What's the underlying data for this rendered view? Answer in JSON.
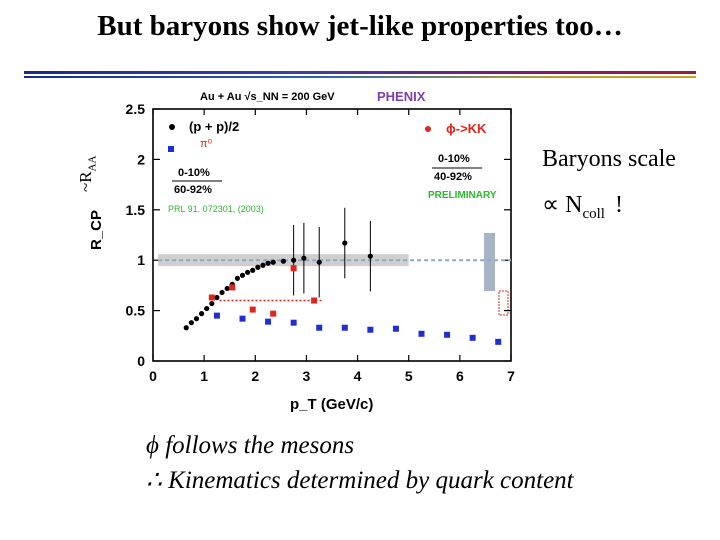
{
  "slide": {
    "title": "But baryons show jet-like properties too…",
    "side_label": "~R",
    "side_label_sub": "AA",
    "right_line1": "Baryons scale",
    "right_line2_prefix": "∝ N",
    "right_line2_sub": "coll",
    "right_line2_suffix": "!",
    "bottom_line1": "ϕ follows the mesons",
    "bottom_line2": "∴ Kinematics determined by quark content"
  },
  "chart_data": {
    "type": "scatter",
    "title": "Au + Au  √s_NN = 200 GeV",
    "experiment": "PHENIX",
    "xlabel": "p_T (GeV/c)",
    "ylabel": "R_CP",
    "xlim": [
      0,
      7
    ],
    "ylim": [
      0,
      2.5
    ],
    "x_ticks": [
      "0",
      "1",
      "2",
      "3",
      "4",
      "5",
      "6",
      "7"
    ],
    "y_ticks": [
      "0",
      "0.5",
      "1",
      "1.5",
      "2",
      "2.5"
    ],
    "legend_left": {
      "proton_label": "(p + p)/2",
      "pion_label": "π⁰",
      "central": "0-10%",
      "peripheral": "60-92%",
      "reference": "PRL 91. 072301, (2003)"
    },
    "legend_right": {
      "phi_label": "ϕ->KK",
      "central": "0-10%",
      "peripheral": "40-92%",
      "status": "PRELIMINARY"
    },
    "colors": {
      "proton": "#000000",
      "pion": "#1f2fcf",
      "phi": "#e0261c",
      "green_text": "#2fb52f",
      "phenix": "#7a3fb0",
      "band": "#cfcfcf",
      "dash": "#8fa6c8"
    },
    "series": [
      {
        "name": "(p + p)/2",
        "marker": "circle",
        "x": [
          0.65,
          0.75,
          0.85,
          0.95,
          1.05,
          1.15,
          1.25,
          1.35,
          1.45,
          1.55,
          1.65,
          1.75,
          1.85,
          1.95,
          2.05,
          2.15,
          2.25,
          2.35,
          2.55,
          2.75,
          2.95,
          3.25,
          3.75,
          4.25
        ],
        "y": [
          0.33,
          0.38,
          0.42,
          0.47,
          0.52,
          0.57,
          0.63,
          0.68,
          0.72,
          0.76,
          0.82,
          0.85,
          0.88,
          0.9,
          0.93,
          0.95,
          0.97,
          0.98,
          0.99,
          1.0,
          1.02,
          0.98,
          1.17,
          1.04
        ]
      },
      {
        "name": "π⁰",
        "marker": "square",
        "x": [
          1.25,
          1.75,
          2.25,
          2.75,
          3.25,
          3.75,
          4.25,
          4.75,
          5.25,
          5.75,
          6.25,
          6.75
        ],
        "y": [
          0.45,
          0.42,
          0.39,
          0.38,
          0.33,
          0.33,
          0.31,
          0.32,
          0.27,
          0.26,
          0.23,
          0.19
        ]
      },
      {
        "name": "ϕ->KK",
        "marker": "square",
        "x": [
          1.15,
          1.55,
          1.95,
          2.35,
          2.75,
          3.15
        ],
        "y": [
          0.63,
          0.73,
          0.51,
          0.47,
          0.92,
          0.6
        ]
      }
    ],
    "reference_line": 1.0
  }
}
